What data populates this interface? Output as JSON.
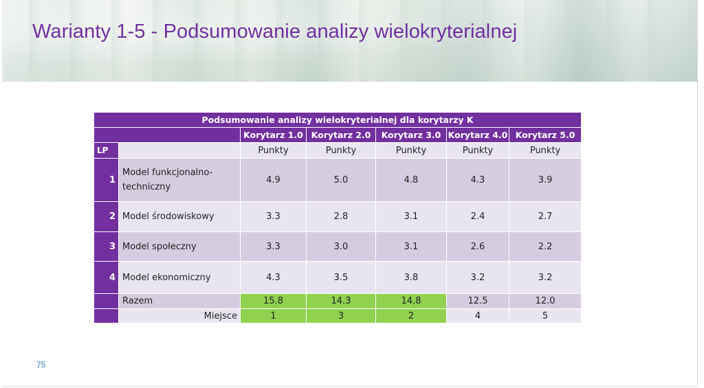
{
  "slide": {
    "title": "Warianty 1-5 - Podsumowanie analizy wielokryterialnej",
    "page_number": "75"
  },
  "table": {
    "title": "Podsumowanie analizy wielokryterialnej dla korytarzy K",
    "lp_header": "LP",
    "corridors": [
      "Korytarz 1.0",
      "Korytarz 2.0",
      "Korytarz 3.0",
      "Korytarz 4.0",
      "Korytarz 5.0"
    ],
    "unit_label": "Punkty",
    "rows": [
      {
        "lp": "1",
        "name": "Model funkcjonalno-techniczny",
        "values": [
          "4.9",
          "5.0",
          "4.8",
          "4.3",
          "3.9"
        ]
      },
      {
        "lp": "2",
        "name": "Model środowiskowy",
        "values": [
          "3.3",
          "2.8",
          "3.1",
          "2.4",
          "2.7"
        ]
      },
      {
        "lp": "3",
        "name": "Model społeczny",
        "values": [
          "3.3",
          "3.0",
          "3.1",
          "2.6",
          "2.2"
        ]
      },
      {
        "lp": "4",
        "name": "Model ekonomiczny",
        "values": [
          "4.3",
          "3.5",
          "3.8",
          "3.2",
          "3.2"
        ]
      }
    ],
    "total": {
      "label": "Razem",
      "values": [
        "15.8",
        "14.3",
        "14.8",
        "12.5",
        "12.0"
      ]
    },
    "rank": {
      "label": "Miejsce",
      "values": [
        "1",
        "3",
        "2",
        "4",
        "5"
      ]
    }
  },
  "colors": {
    "purple": "#7030a0",
    "highlight_green": "#92d050",
    "row_dark": "#d5ccdf",
    "row_light": "#e9e5f0"
  }
}
